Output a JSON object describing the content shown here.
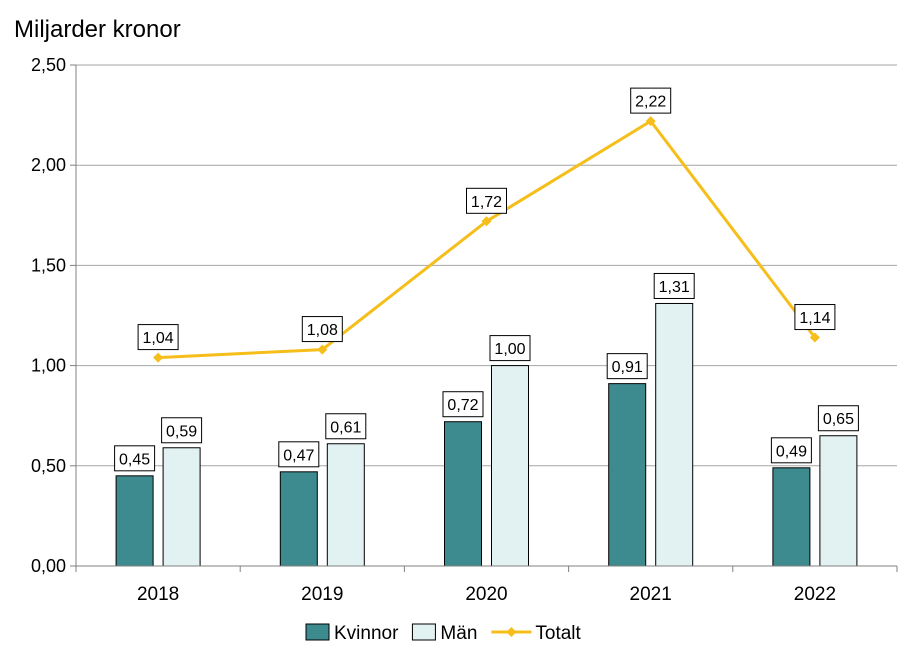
{
  "chart_data": {
    "type": "bar",
    "ylabel": "Miljarder kronor",
    "ylim": [
      0,
      2.5
    ],
    "yticks": [
      "0,00",
      "0,50",
      "1,00",
      "1,50",
      "2,00",
      "2,50"
    ],
    "categories": [
      "2018",
      "2019",
      "2020",
      "2021",
      "2022"
    ],
    "series": [
      {
        "name": "Kvinnor",
        "kind": "bar",
        "color": "#3d8b8f",
        "values": [
          0.45,
          0.47,
          0.72,
          0.91,
          0.49
        ],
        "labels": [
          "0,45",
          "0,47",
          "0,72",
          "0,91",
          "0,49"
        ]
      },
      {
        "name": "Män",
        "kind": "bar",
        "color": "#e2f1f1",
        "values": [
          0.59,
          0.61,
          1.0,
          1.31,
          0.65
        ],
        "labels": [
          "0,59",
          "0,61",
          "1,00",
          "1,31",
          "0,65"
        ]
      },
      {
        "name": "Totalt",
        "kind": "line",
        "color": "#f5be1a",
        "values": [
          1.04,
          1.08,
          1.72,
          2.22,
          1.14
        ],
        "labels": [
          "1,04",
          "1,08",
          "1,72",
          "2,22",
          "1,14"
        ]
      }
    ],
    "legend": "bottom",
    "grid": true
  }
}
